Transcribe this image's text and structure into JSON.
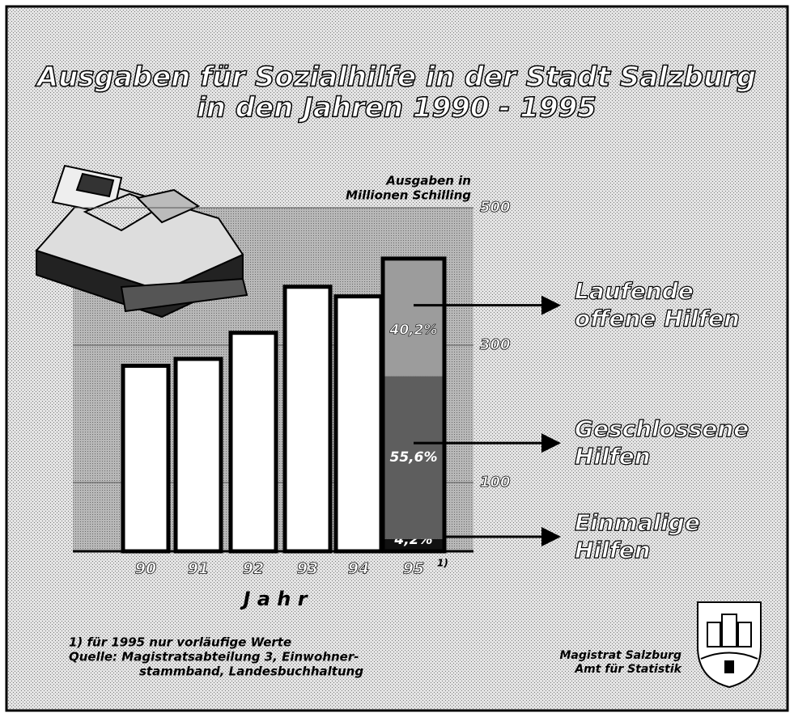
{
  "chart_data": {
    "type": "bar",
    "title": [
      "Ausgaben für Sozialhilfe in der Stadt Salzburg",
      "in den Jahren 1990 - 1995"
    ],
    "y_label": [
      "Ausgaben in",
      "Millionen Schilling"
    ],
    "x_label": "J a h r",
    "categories": [
      "90",
      "91",
      "92",
      "93",
      "94",
      "95"
    ],
    "footnote_marker": "1)",
    "values": [
      270,
      280,
      318,
      385,
      371,
      426
    ],
    "color": "#ffffff",
    "ylim": [
      0,
      500
    ],
    "yticks": [
      100,
      300,
      500
    ],
    "grid": true,
    "segments": [
      {
        "name": [
          "Einmalige",
          "Hilfen"
        ],
        "value": 4.2,
        "value_label": "4,2%",
        "color": "#111111"
      },
      {
        "name": [
          "Geschlossene",
          "Hilfen"
        ],
        "value": 55.6,
        "value_label": "55,6%",
        "color": "#5e5e5e"
      },
      {
        "name": [
          "Laufende",
          "offene Hilfen"
        ],
        "value": 40.2,
        "value_label": "40,2%",
        "color": "#9c9c9c"
      }
    ]
  },
  "footnote": "1) für 1995 nur vorläufige Werte",
  "source": [
    "Quelle: Magistratsabteilung 3, Einwohner-",
    "stammband, Landesbuchhaltung"
  ],
  "credit": [
    "Magistrat Salzburg",
    "Amt für Statistik"
  ]
}
